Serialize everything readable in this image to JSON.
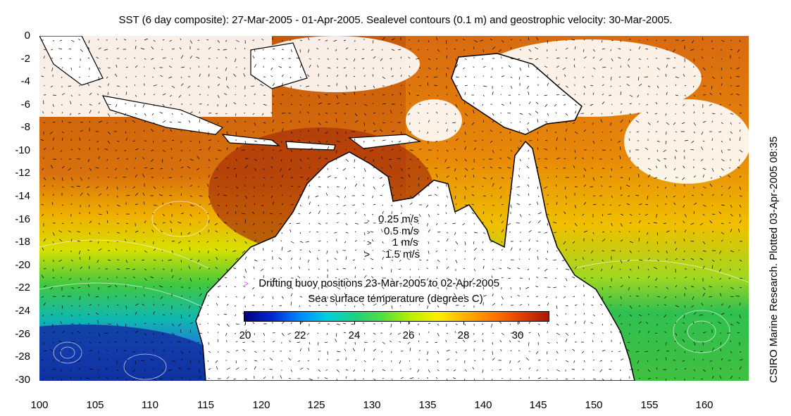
{
  "title": "SST (6 day composite): 27-Mar-2005 - 01-Apr-2005. Sealevel contours (0.1 m) and geostrophic velocity: 30-Mar-2005.",
  "credit": "CSIRO Marine Research. Plotted 03-Apr-2005 08:35",
  "axes": {
    "xlim": [
      100,
      164
    ],
    "ylim": [
      -30,
      0
    ],
    "x_ticks": [
      "100",
      "105",
      "110",
      "115",
      "120",
      "125",
      "130",
      "135",
      "140",
      "145",
      "150",
      "155",
      "160"
    ],
    "y_ticks": [
      "0",
      "-2",
      "-4",
      "-6",
      "-8",
      "-10",
      "-12",
      "-14",
      "-16",
      "-18",
      "-20",
      "-22",
      "-24",
      "-26",
      "-28",
      "-30"
    ]
  },
  "velocity_legend": [
    {
      "symbol": ">",
      "label": "0.25 m/s"
    },
    {
      "symbol": ">",
      "label": "0.5 m/s"
    },
    {
      "symbol": ">",
      "label": "1 m/s"
    },
    {
      "symbol": ">",
      "label": "1.5 m/s"
    }
  ],
  "buoy_legend": {
    "symbol": ">",
    "label": "Drifting buoy positions 23-Mar-2005 to 02-Apr-2005",
    "color": "#ff3cff"
  },
  "colorbar": {
    "label": "Sea surface temperature (degrees C)",
    "ticks": [
      "20",
      "22",
      "24",
      "26",
      "28",
      "30"
    ],
    "range": [
      20,
      31
    ]
  }
}
